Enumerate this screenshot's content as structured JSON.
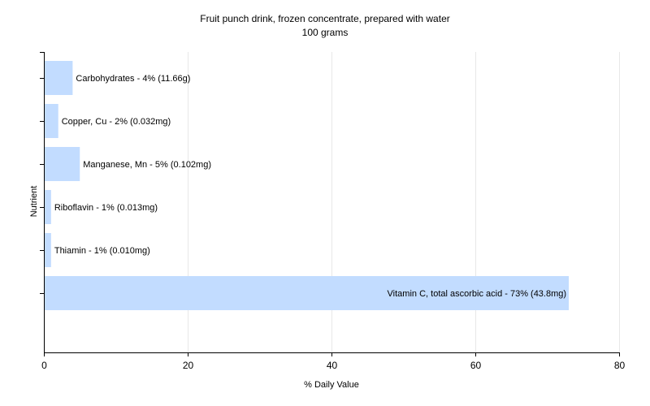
{
  "chart_data": {
    "type": "bar",
    "orientation": "horizontal",
    "title": "Fruit punch drink, frozen concentrate, prepared with water",
    "subtitle": "100 grams",
    "xlabel": "% Daily Value",
    "ylabel": "Nutrient",
    "xlim": [
      0,
      80
    ],
    "x_ticks": [
      "0",
      "20",
      "40",
      "60",
      "80"
    ],
    "x_tick_values": [
      0,
      20,
      40,
      60,
      80
    ],
    "categories": [
      "Carbohydrates",
      "Copper, Cu",
      "Manganese, Mn",
      "Riboflavin",
      "Thiamin",
      "Vitamin C, total ascorbic acid"
    ],
    "values": [
      4,
      2,
      5,
      1,
      1,
      73
    ],
    "amounts": [
      "11.66g",
      "0.032mg",
      "0.102mg",
      "0.013mg",
      "0.010mg",
      "43.8mg"
    ],
    "data_labels": [
      "Carbohydrates - 4% (11.66g)",
      "Copper, Cu - 2% (0.032mg)",
      "Manganese, Mn - 5% (0.102mg)",
      "Riboflavin - 1% (0.013mg)",
      "Thiamin - 1% (0.010mg)",
      "Vitamin C, total ascorbic acid - 73% (43.8mg)"
    ],
    "grid": true,
    "legend": "none",
    "colors": {
      "bar": "#c2dcff",
      "grid": "#e8e8e8",
      "axis": "#000000",
      "text": "#000000"
    }
  }
}
